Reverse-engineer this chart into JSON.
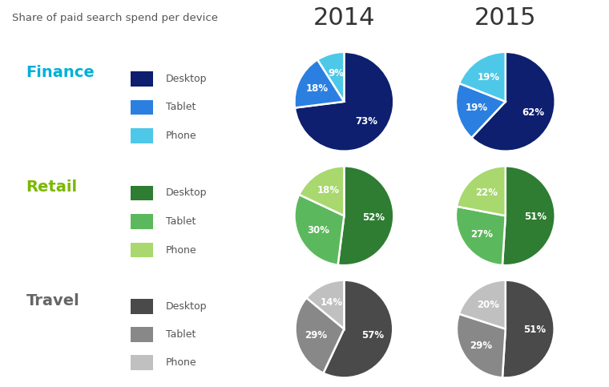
{
  "title": "Share of paid search spend per device",
  "year_labels": [
    "2014",
    "2015"
  ],
  "categories": [
    "Finance",
    "Retail",
    "Travel"
  ],
  "legend_labels": [
    "Desktop",
    "Tablet",
    "Phone"
  ],
  "bg_colors": [
    "#cceeff",
    "#e6f5b0",
    "#dddddd"
  ],
  "bg_colors_light": [
    "#ddf4ff",
    "#f0facc",
    "#ebebeb"
  ],
  "pie_colors": {
    "Finance": [
      "#0d1f6e",
      "#2b7fe0",
      "#4ec8e8"
    ],
    "Retail": [
      "#2e7d32",
      "#5cb85c",
      "#a8d86e"
    ],
    "Travel": [
      "#4a4a4a",
      "#888888",
      "#c0c0c0"
    ]
  },
  "category_colors": [
    "#00b0d8",
    "#7ab800",
    "#666666"
  ],
  "category_fontsize": 14,
  "legend_fontsize": 9,
  "data_2014": {
    "Finance": [
      73,
      18,
      9
    ],
    "Retail": [
      52,
      30,
      18
    ],
    "Travel": [
      57,
      29,
      14
    ]
  },
  "data_2015": {
    "Finance": [
      62,
      19,
      19
    ],
    "Retail": [
      51,
      27,
      22
    ],
    "Travel": [
      51,
      29,
      20
    ]
  },
  "white_gap_color": "#ffffff",
  "title_color": "#555555",
  "title_fontsize": 9.5,
  "year_fontsize": 22,
  "year_color": "#333333",
  "label_color": "#555555",
  "pct_fontsize": 8.5
}
